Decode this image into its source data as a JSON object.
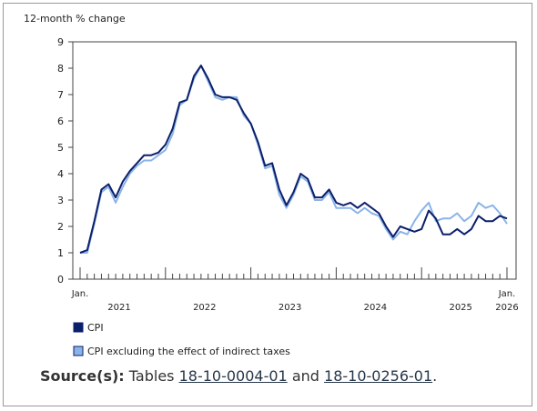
{
  "chart_data": {
    "type": "line",
    "ylabel": "12-month % change",
    "xlabel": "",
    "ylim": [
      0,
      9
    ],
    "yticks": [
      0,
      1,
      2,
      3,
      4,
      5,
      6,
      7,
      8,
      9
    ],
    "grid": false,
    "x_start": "Jan. 2021",
    "x_end": "Jan. 2026",
    "x_month_count": 61,
    "x_edge_labels": [
      "Jan.",
      "Jan."
    ],
    "x_year_labels": [
      "2021",
      "2022",
      "2023",
      "2024",
      "2025",
      "2026"
    ],
    "legend_position": "bottom-left",
    "series": [
      {
        "name": "CPI",
        "color": "#0b1f6b",
        "values": [
          1.0,
          1.1,
          2.2,
          3.4,
          3.6,
          3.1,
          3.7,
          4.1,
          4.4,
          4.7,
          4.7,
          4.8,
          5.1,
          5.7,
          6.7,
          6.8,
          7.7,
          8.1,
          7.6,
          7.0,
          6.9,
          6.9,
          6.8,
          6.3,
          5.9,
          5.2,
          4.3,
          4.4,
          3.4,
          2.8,
          3.3,
          4.0,
          3.8,
          3.1,
          3.1,
          3.4,
          2.9,
          2.8,
          2.9,
          2.7,
          2.9,
          2.7,
          2.5,
          2.0,
          1.6,
          2.0,
          1.9,
          1.8,
          1.9,
          2.6,
          2.3,
          1.7,
          1.7,
          1.9,
          1.7,
          1.9,
          2.4,
          2.2,
          2.2,
          2.4,
          2.3
        ]
      },
      {
        "name": "CPI excluding the effect of indirect taxes",
        "color": "#8ab4e8",
        "values": [
          1.0,
          1.0,
          2.1,
          3.3,
          3.5,
          2.9,
          3.5,
          4.0,
          4.3,
          4.5,
          4.5,
          4.7,
          4.9,
          5.5,
          6.6,
          6.8,
          7.6,
          8.1,
          7.5,
          6.9,
          6.8,
          6.9,
          6.9,
          6.2,
          5.9,
          5.1,
          4.2,
          4.3,
          3.2,
          2.7,
          3.2,
          3.9,
          3.7,
          3.0,
          3.0,
          3.3,
          2.7,
          2.7,
          2.7,
          2.5,
          2.7,
          2.5,
          2.4,
          1.9,
          1.5,
          1.8,
          1.7,
          2.2,
          2.6,
          2.9,
          2.2,
          2.3,
          2.3,
          2.5,
          2.2,
          2.4,
          2.9,
          2.7,
          2.8,
          2.5,
          2.1
        ]
      }
    ]
  },
  "source": {
    "label": "Source(s):",
    "prefix": "Tables",
    "link1": "18-10-0004-01",
    "and": "and",
    "link2": "18-10-0256-01",
    "suffix": "."
  }
}
